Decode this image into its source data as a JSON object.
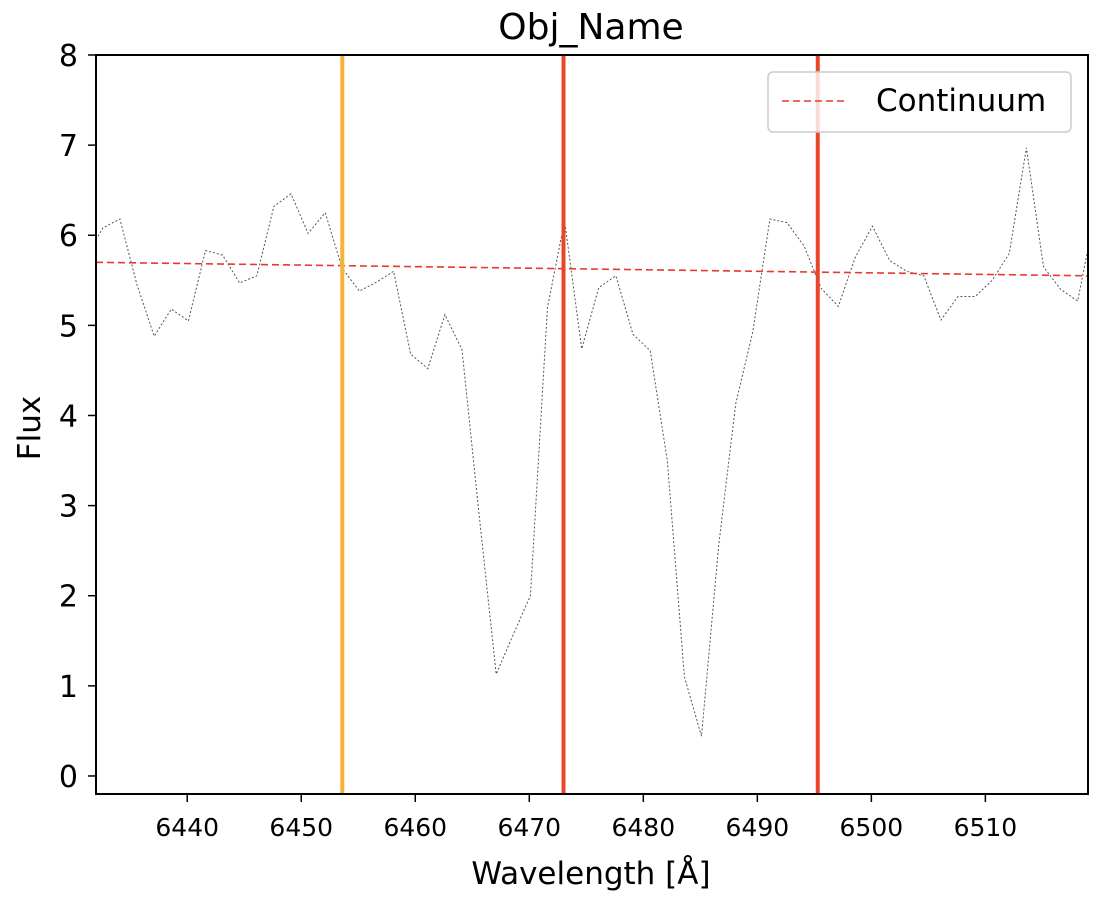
{
  "chart_data": {
    "type": "line",
    "title": "Obj_Name",
    "xlabel": "Wavelength [Å]",
    "ylabel": "Flux",
    "xlim": [
      6432,
      6519
    ],
    "ylim": [
      -0.2,
      8
    ],
    "xticks": [
      6440,
      6450,
      6460,
      6470,
      6480,
      6490,
      6500,
      6510
    ],
    "yticks": [
      0,
      1,
      2,
      3,
      4,
      5,
      6,
      7,
      8
    ],
    "grid": false,
    "legend": {
      "placement": "top-right",
      "entries": [
        "Continuum"
      ]
    },
    "series": [
      {
        "style": "dotted",
        "color": "#555555",
        "x": [
          6432.0,
          6432.6,
          6434.1,
          6435.6,
          6437.1,
          6438.6,
          6440.1,
          6441.6,
          6443.1,
          6444.6,
          6446.1,
          6447.6,
          6449.1,
          6450.6,
          6452.1,
          6453.6,
          6455.1,
          6456.6,
          6458.1,
          6459.6,
          6461.1,
          6462.6,
          6464.1,
          6465.6,
          6467.1,
          6468.6,
          6470.1,
          6471.6,
          6473.1,
          6474.6,
          6476.1,
          6477.6,
          6479.1,
          6480.6,
          6482.1,
          6483.6,
          6485.1,
          6486.6,
          6488.1,
          6489.6,
          6491.1,
          6492.6,
          6494.1,
          6495.6,
          6497.1,
          6498.6,
          6500.1,
          6501.6,
          6503.1,
          6504.6,
          6506.1,
          6507.6,
          6509.1,
          6510.6,
          6512.1,
          6513.6,
          6515.1,
          6516.6,
          6518.1,
          6519.0
        ],
        "y": [
          5.95,
          6.08,
          6.18,
          5.45,
          4.88,
          5.18,
          5.05,
          5.83,
          5.78,
          5.47,
          5.55,
          6.32,
          6.46,
          6.02,
          6.25,
          5.63,
          5.38,
          5.48,
          5.6,
          4.68,
          4.52,
          5.12,
          4.73,
          2.9,
          1.13,
          1.57,
          2.0,
          5.2,
          6.16,
          4.74,
          5.42,
          5.55,
          4.9,
          4.72,
          3.5,
          1.1,
          0.44,
          2.55,
          4.13,
          4.93,
          6.18,
          6.14,
          5.88,
          5.41,
          5.21,
          5.76,
          6.1,
          5.72,
          5.6,
          5.55,
          5.06,
          5.32,
          5.32,
          5.5,
          5.8,
          6.97,
          5.65,
          5.4,
          5.27,
          5.85
        ]
      },
      {
        "name": "Continuum",
        "style": "dashed",
        "color": "#e8392a",
        "x": [
          6432,
          6519
        ],
        "y": [
          5.7,
          5.55
        ]
      }
    ],
    "vertical_lines": [
      {
        "x": 6453.6,
        "color": "#f5b338"
      },
      {
        "x": 6473.0,
        "color": "#e8452a"
      },
      {
        "x": 6495.3,
        "color": "#e8452a"
      }
    ]
  }
}
